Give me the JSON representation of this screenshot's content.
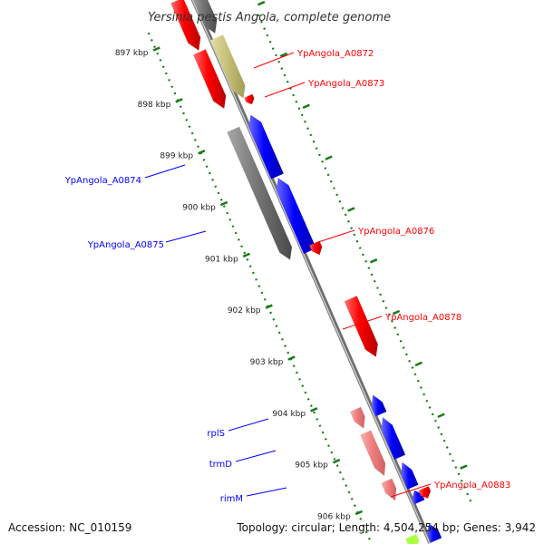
{
  "title": "Yersinia pestis Angola, complete genome",
  "footer": {
    "accession": "Accession: NC_010159",
    "stats": "Topology: circular; Length: 4,504,254 bp; Genes: 3,942"
  },
  "colors": {
    "forward": "#ff0000",
    "reverse": "#0000ff",
    "pseudo": "#777777",
    "olive": "#c9c27a",
    "rna": "#f08080",
    "scale": "#1a7a1a",
    "backbone": "#9a9a9a"
  },
  "ticks": [
    "897 kbp",
    "898 kbp",
    "899 kbp",
    "900 kbp",
    "901 kbp",
    "902 kbp",
    "903 kbp",
    "904 kbp",
    "905 kbp",
    "906 kbp"
  ],
  "labels": {
    "YpAngola_A0872": "YpAngola_A0872",
    "YpAngola_A0873": "YpAngola_A0873",
    "YpAngola_A0874": "YpAngola_A0874",
    "YpAngola_A0875": "YpAngola_A0875",
    "YpAngola_A0876": "YpAngola_A0876",
    "YpAngola_A0878": "YpAngola_A0878",
    "YpAngola_A0883": "YpAngola_A0883",
    "rplS": "rplS",
    "trmD": "trmD",
    "rimM": "rimM"
  }
}
